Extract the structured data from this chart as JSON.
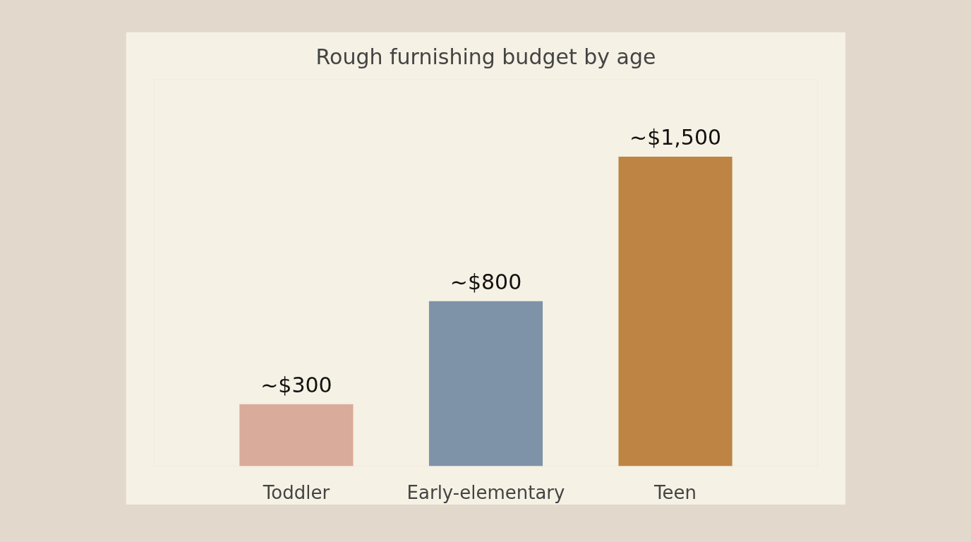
{
  "chart_data": {
    "type": "bar",
    "title": "Rough furnishing budget by age",
    "categories": [
      "Toddler",
      "Early-elementary",
      "Teen"
    ],
    "values": [
      300,
      800,
      1500
    ],
    "colors": [
      "#d9ab9a",
      "#7f93a8",
      "#be8444"
    ],
    "value_labels": [
      "~$300",
      "~$800",
      "~$1,500"
    ]
  }
}
